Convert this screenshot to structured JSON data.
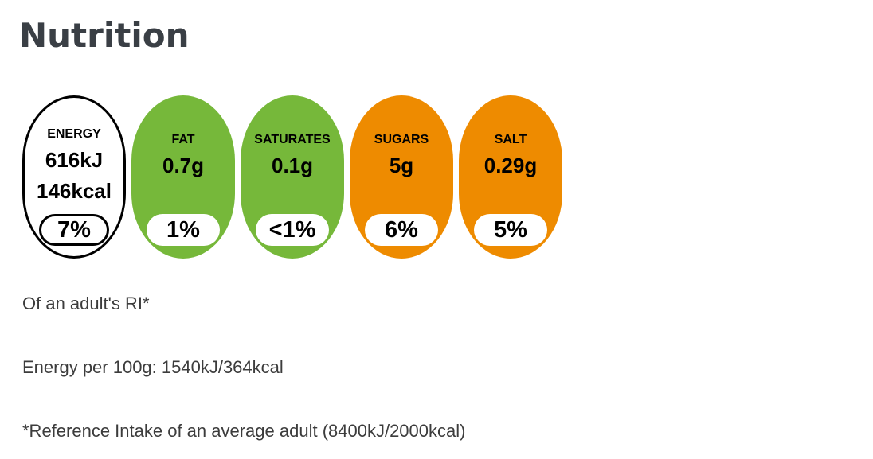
{
  "heading": "Nutrition",
  "colors": {
    "green": "#76b83a",
    "orange": "#ee8b00",
    "outline": "#000000",
    "heading_text": "#3a3f45",
    "body_text": "#3c3c3c",
    "pill_background": "#ffffff"
  },
  "nutrients": [
    {
      "label": "ENERGY",
      "value": "616kJ",
      "value2": "146kcal",
      "percent": "7%",
      "style": "white"
    },
    {
      "label": "FAT",
      "value": "0.7g",
      "percent": "1%",
      "style": "green"
    },
    {
      "label": "SATURATES",
      "value": "0.1g",
      "percent": "<1%",
      "style": "green"
    },
    {
      "label": "SUGARS",
      "value": "5g",
      "percent": "6%",
      "style": "orange"
    },
    {
      "label": "SALT",
      "value": "0.29g",
      "percent": "5%",
      "style": "orange"
    }
  ],
  "footnotes": {
    "ri": "Of an adult's RI*",
    "energy_per_100g": "Energy per 100g: 1540kJ/364kcal",
    "reference": "*Reference Intake of an average adult (8400kJ/2000kcal)"
  }
}
